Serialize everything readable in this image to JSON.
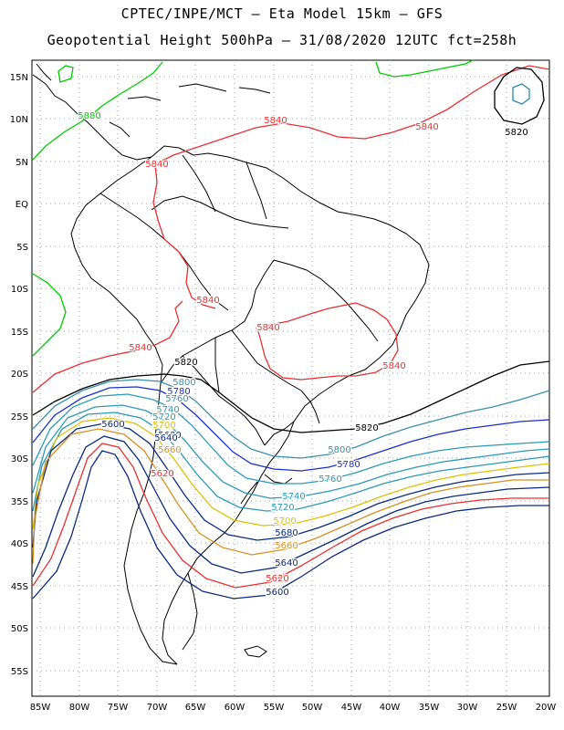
{
  "title_line1": "CPTEC/INPE/MCT –  Eta Model 15km – GFS",
  "title_line2": "Geopotential Height 500hPa – 31/08/2020 12UTC fct=258h",
  "lat_labels": [
    "15N",
    "10N",
    "5N",
    "EQ",
    "5S",
    "10S",
    "15S",
    "20S",
    "25S",
    "30S",
    "35S",
    "40S",
    "45S",
    "50S",
    "55S"
  ],
  "lon_labels": [
    "85W",
    "80W",
    "75W",
    "70W",
    "65W",
    "60W",
    "55W",
    "50W",
    "45W",
    "40W",
    "35W",
    "30W",
    "25W",
    "20W"
  ],
  "contour_labels": [
    {
      "text": "5880",
      "color": "#00cc00"
    },
    {
      "text": "5840",
      "color": "#e83030"
    },
    {
      "text": "5840",
      "color": "#e83030"
    },
    {
      "text": "5840",
      "color": "#e83030"
    },
    {
      "text": "5840",
      "color": "#e83030"
    },
    {
      "text": "5840",
      "color": "#e83030"
    },
    {
      "text": "5840",
      "color": "#e83030"
    },
    {
      "text": "5840",
      "color": "#e83030"
    },
    {
      "text": "5820",
      "color": "#000000"
    },
    {
      "text": "5820",
      "color": "#000000"
    },
    {
      "text": "5820",
      "color": "#000000"
    },
    {
      "text": "5800",
      "color": "#3a8fb0"
    },
    {
      "text": "5780",
      "color": "#1a30c8"
    },
    {
      "text": "5760",
      "color": "#2a9ab8"
    },
    {
      "text": "5740",
      "color": "#2a9ab8"
    },
    {
      "text": "5720",
      "color": "#2a9ab8"
    },
    {
      "text": "5700",
      "color": "#e0c000"
    },
    {
      "text": "5680",
      "color": "#0a2a80"
    },
    {
      "text": "5660",
      "color": "#d89020"
    },
    {
      "text": "5640",
      "color": "#0a2a80"
    },
    {
      "text": "5620",
      "color": "#e83030"
    },
    {
      "text": "5600",
      "color": "#0a2a80"
    },
    {
      "text": "5800",
      "color": "#3a8fb0"
    },
    {
      "text": "5780",
      "color": "#1a30c8"
    },
    {
      "text": "5760",
      "color": "#2a9ab8"
    },
    {
      "text": "5740",
      "color": "#2a9ab8"
    },
    {
      "text": "5720",
      "color": "#2a9ab8"
    },
    {
      "text": "5700",
      "color": "#e0c000"
    },
    {
      "text": "5680",
      "color": "#0a2a80"
    },
    {
      "text": "5660",
      "color": "#d89020"
    },
    {
      "text": "5640",
      "color": "#0a2a80"
    },
    {
      "text": "5620",
      "color": "#e83030"
    },
    {
      "text": "5600",
      "color": "#0a2a80"
    }
  ]
}
